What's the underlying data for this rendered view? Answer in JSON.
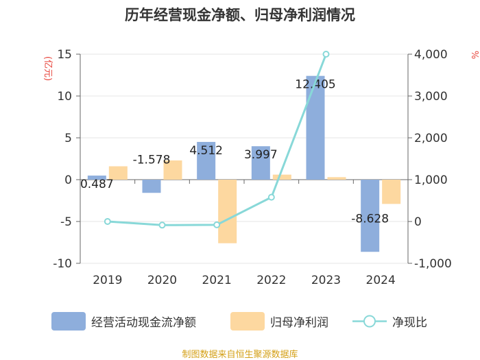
{
  "chart_data": {
    "type": "bar",
    "title": "历年经营现金净额、归母净利润情况",
    "categories": [
      "2019",
      "2020",
      "2021",
      "2022",
      "2023",
      "2024"
    ],
    "series": [
      {
        "name": "经营活动现金流净额",
        "type": "bar",
        "axis": "left",
        "values": [
          0.487,
          -1.578,
          4.512,
          3.997,
          12.405,
          -8.628
        ],
        "data_labels": [
          "0.487",
          "-1.578",
          "4.512",
          "3.997",
          "12.405",
          "-8.628"
        ]
      },
      {
        "name": "归母净利润",
        "type": "bar",
        "axis": "left",
        "values": [
          1.6,
          2.3,
          -7.6,
          0.6,
          0.3,
          -2.9
        ]
      },
      {
        "name": "净现比",
        "type": "line",
        "axis": "right",
        "values": [
          0,
          -87,
          -80,
          580,
          4000,
          null
        ]
      }
    ],
    "y_left": {
      "label": "(亿元)",
      "range": [
        -10,
        15
      ],
      "ticks": [
        15,
        10,
        5,
        0,
        -5,
        -10
      ],
      "tick_labels": [
        "15",
        "10",
        "5",
        "0",
        "-5",
        "-10"
      ]
    },
    "y_right": {
      "label": "%",
      "range": [
        -1000,
        4000
      ],
      "ticks": [
        4000,
        3000,
        2000,
        1000,
        0,
        -1000
      ],
      "tick_labels": [
        "4,000",
        "3,000",
        "2,000",
        "1,000",
        "0",
        "-1,000"
      ]
    },
    "colors": {
      "cash_flow": "#8eaedc",
      "net_profit": "#fdd8a0",
      "ratio": "#88d8d8",
      "axis": "#666666",
      "grid": "#e6e6e6",
      "unit": "#e8453c"
    },
    "legend": [
      "经营活动现金流净额",
      "归母净利润",
      "净现比"
    ],
    "source": "制图数据来自恒生聚源数据库"
  }
}
